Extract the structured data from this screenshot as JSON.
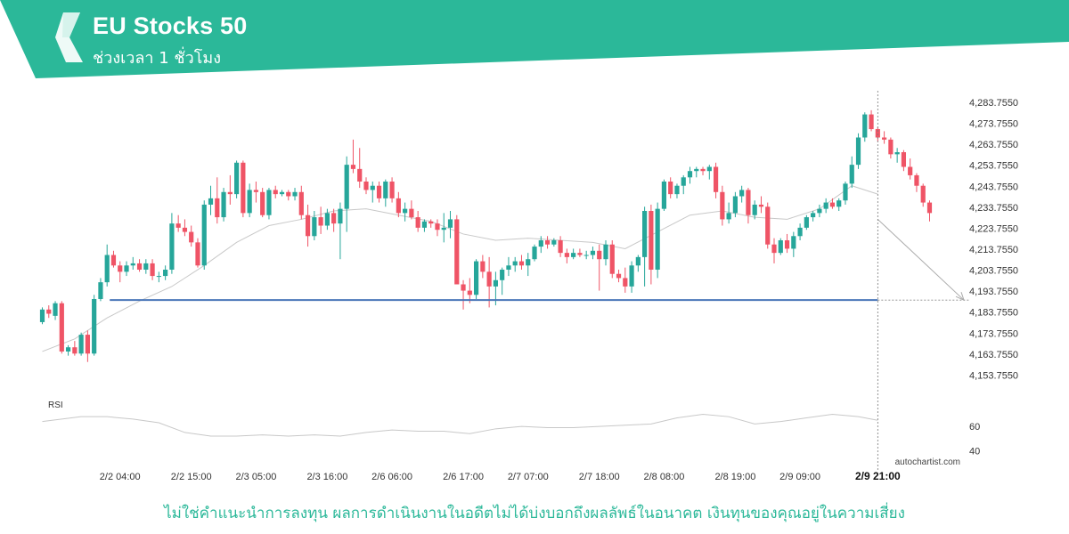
{
  "header": {
    "title": "EU Stocks 50",
    "subtitle": "ช่วงเวลา 1 ชั่วโมง",
    "logo_icon": "autochartist-logo-icon",
    "banner_color": "#2bb899"
  },
  "footer": {
    "disclaimer": "ไม่ใช่คำแนะนำการลงทุน ผลการดำเนินงานในอดีตไม่ได้บ่งบอกถึงผลลัพธ์ในอนาคต เงินทุนของคุณอยู่ในความเสี่ยง",
    "watermark": "autochartist.com"
  },
  "colors": {
    "up": "#26a69a",
    "down": "#ef5466",
    "ma": "#c8c8c8",
    "level": "#4a76b8",
    "rsi": "#c8c8c8",
    "projection": "#aaaaaa"
  },
  "chart_data": {
    "type": "candlestick",
    "symbol": "EU Stocks 50",
    "timeframe": "1 hour",
    "ylim": [
      4148,
      4288
    ],
    "y_ticks": [
      4283.755,
      4273.755,
      4263.755,
      4253.755,
      4243.755,
      4233.755,
      4223.755,
      4213.755,
      4203.755,
      4193.755,
      4183.755,
      4173.755,
      4163.755,
      4153.755
    ],
    "y_tick_labels": [
      "4,283.7550",
      "4,273.7550",
      "4,263.7550",
      "4,253.7550",
      "4,243.7550",
      "4,233.7550",
      "4,223.7550",
      "4,213.7550",
      "4,203.7550",
      "4,193.7550",
      "4,183.7550",
      "4,173.7550",
      "4,163.7550",
      "4,153.7550"
    ],
    "x_tick_labels": [
      "2/2 04:00",
      "2/2 15:00",
      "2/3 05:00",
      "2/3 16:00",
      "2/6 06:00",
      "2/6 17:00",
      "2/7 07:00",
      "2/7 18:00",
      "2/8 08:00",
      "2/8 19:00",
      "2/9 09:00"
    ],
    "x_tick_index": [
      12,
      23,
      33,
      44,
      54,
      65,
      75,
      86,
      96,
      107,
      117
    ],
    "current_time_label": "2/9 21:00",
    "current_time_index": 129,
    "support_level": 4189.5,
    "support_level_range": [
      10,
      129
    ],
    "projection": {
      "from_index": 129,
      "from_value": 4228,
      "to_index": 143,
      "to_value": 4189.5
    },
    "candles_ohlc": [
      [
        4179,
        4186,
        4178,
        4185
      ],
      [
        4185,
        4187,
        4181,
        4183
      ],
      [
        4182,
        4189,
        4180,
        4188
      ],
      [
        4188,
        4189,
        4164,
        4165
      ],
      [
        4165,
        4168,
        4163,
        4167
      ],
      [
        4167,
        4170,
        4163,
        4164
      ],
      [
        4164,
        4174,
        4163,
        4173
      ],
      [
        4173,
        4175,
        4160,
        4164
      ],
      [
        4164,
        4192,
        4163,
        4190
      ],
      [
        4190,
        4200,
        4189,
        4198
      ],
      [
        4198,
        4216,
        4196,
        4211
      ],
      [
        4211,
        4213,
        4205,
        4206
      ],
      [
        4206,
        4208,
        4198,
        4203
      ],
      [
        4203,
        4208,
        4201,
        4206
      ],
      [
        4206,
        4210,
        4204,
        4207
      ],
      [
        4207,
        4209,
        4203,
        4204
      ],
      [
        4204,
        4209,
        4202,
        4207
      ],
      [
        4207,
        4209,
        4199,
        4201
      ],
      [
        4201,
        4203,
        4198,
        4201
      ],
      [
        4201,
        4206,
        4199,
        4204
      ],
      [
        4204,
        4231,
        4202,
        4226
      ],
      [
        4226,
        4230,
        4222,
        4224
      ],
      [
        4224,
        4228,
        4220,
        4222
      ],
      [
        4222,
        4225,
        4215,
        4217
      ],
      [
        4217,
        4219,
        4205,
        4206
      ],
      [
        4206,
        4237,
        4204,
        4235
      ],
      [
        4235,
        4244,
        4230,
        4238
      ],
      [
        4238,
        4248,
        4226,
        4229
      ],
      [
        4229,
        4243,
        4227,
        4241
      ],
      [
        4241,
        4249,
        4235,
        4240
      ],
      [
        4240,
        4256,
        4238,
        4255
      ],
      [
        4255,
        4256,
        4229,
        4231
      ],
      [
        4231,
        4245,
        4229,
        4242
      ],
      [
        4242,
        4246,
        4236,
        4241
      ],
      [
        4241,
        4243,
        4229,
        4230
      ],
      [
        4230,
        4243,
        4228,
        4242
      ],
      [
        4242,
        4244,
        4238,
        4240
      ],
      [
        4240,
        4242,
        4239,
        4241
      ],
      [
        4241,
        4242,
        4237,
        4239
      ],
      [
        4239,
        4243,
        4237,
        4241
      ],
      [
        4241,
        4244,
        4228,
        4230
      ],
      [
        4230,
        4235,
        4215,
        4220
      ],
      [
        4220,
        4232,
        4218,
        4229
      ],
      [
        4229,
        4234,
        4221,
        4225
      ],
      [
        4225,
        4233,
        4223,
        4231
      ],
      [
        4231,
        4233,
        4222,
        4226
      ],
      [
        4226,
        4236,
        4209,
        4233
      ],
      [
        4233,
        4258,
        4222,
        4254
      ],
      [
        4254,
        4266,
        4250,
        4252
      ],
      [
        4252,
        4262,
        4243,
        4246
      ],
      [
        4246,
        4248,
        4240,
        4242
      ],
      [
        4242,
        4246,
        4236,
        4244
      ],
      [
        4244,
        4246,
        4236,
        4238
      ],
      [
        4238,
        4247,
        4234,
        4246
      ],
      [
        4246,
        4248,
        4236,
        4238
      ],
      [
        4238,
        4241,
        4229,
        4231
      ],
      [
        4231,
        4236,
        4227,
        4233
      ],
      [
        4233,
        4237,
        4228,
        4229
      ],
      [
        4229,
        4232,
        4222,
        4224
      ],
      [
        4224,
        4228,
        4222,
        4227
      ],
      [
        4227,
        4228,
        4224,
        4226
      ],
      [
        4226,
        4228,
        4220,
        4223
      ],
      [
        4223,
        4231,
        4217,
        4224
      ],
      [
        4224,
        4232,
        4219,
        4228
      ],
      [
        4228,
        4230,
        4197,
        4197
      ],
      [
        4197,
        4199,
        4185,
        4194
      ],
      [
        4194,
        4200,
        4188,
        4192
      ],
      [
        4192,
        4209,
        4190,
        4208
      ],
      [
        4208,
        4211,
        4200,
        4203
      ],
      [
        4203,
        4210,
        4186,
        4196
      ],
      [
        4196,
        4203,
        4187,
        4199
      ],
      [
        4199,
        4205,
        4192,
        4204
      ],
      [
        4204,
        4210,
        4201,
        4206
      ],
      [
        4206,
        4210,
        4203,
        4208
      ],
      [
        4208,
        4211,
        4204,
        4206
      ],
      [
        4206,
        4212,
        4201,
        4209
      ],
      [
        4209,
        4216,
        4208,
        4215
      ],
      [
        4215,
        4220,
        4212,
        4218
      ],
      [
        4218,
        4220,
        4214,
        4216
      ],
      [
        4216,
        4219,
        4215,
        4218
      ],
      [
        4218,
        4220,
        4210,
        4212
      ],
      [
        4212,
        4214,
        4207,
        4210
      ],
      [
        4210,
        4214,
        4209,
        4212
      ],
      [
        4212,
        4214,
        4210,
        4211
      ],
      [
        4211,
        4213,
        4209,
        4211
      ],
      [
        4211,
        4215,
        4209,
        4213
      ],
      [
        4213,
        4216,
        4194,
        4209
      ],
      [
        4209,
        4218,
        4206,
        4216
      ],
      [
        4216,
        4218,
        4200,
        4202
      ],
      [
        4202,
        4204,
        4198,
        4200
      ],
      [
        4200,
        4205,
        4193,
        4196
      ],
      [
        4196,
        4208,
        4193,
        4206
      ],
      [
        4206,
        4211,
        4203,
        4210
      ],
      [
        4210,
        4234,
        4196,
        4232
      ],
      [
        4232,
        4235,
        4197,
        4204
      ],
      [
        4204,
        4236,
        4200,
        4233
      ],
      [
        4233,
        4247,
        4232,
        4246
      ],
      [
        4246,
        4248,
        4238,
        4240
      ],
      [
        4240,
        4245,
        4238,
        4244
      ],
      [
        4244,
        4249,
        4240,
        4248
      ],
      [
        4248,
        4253,
        4245,
        4251
      ],
      [
        4251,
        4253,
        4248,
        4252
      ],
      [
        4252,
        4253,
        4249,
        4251
      ],
      [
        4251,
        4254,
        4247,
        4253
      ],
      [
        4253,
        4255,
        4238,
        4241
      ],
      [
        4241,
        4244,
        4225,
        4228
      ],
      [
        4228,
        4236,
        4226,
        4231
      ],
      [
        4231,
        4241,
        4229,
        4239
      ],
      [
        4239,
        4244,
        4236,
        4242
      ],
      [
        4242,
        4243,
        4226,
        4230
      ],
      [
        4230,
        4237,
        4228,
        4235
      ],
      [
        4235,
        4239,
        4231,
        4234
      ],
      [
        4234,
        4236,
        4214,
        4216
      ],
      [
        4216,
        4219,
        4207,
        4212
      ],
      [
        4212,
        4219,
        4211,
        4218
      ],
      [
        4218,
        4221,
        4212,
        4214
      ],
      [
        4214,
        4222,
        4210,
        4220
      ],
      [
        4220,
        4226,
        4218,
        4224
      ],
      [
        4224,
        4230,
        4223,
        4229
      ],
      [
        4229,
        4232,
        4227,
        4231
      ],
      [
        4231,
        4235,
        4229,
        4233
      ],
      [
        4233,
        4238,
        4231,
        4236
      ],
      [
        4236,
        4238,
        4233,
        4234
      ],
      [
        4234,
        4238,
        4232,
        4237
      ],
      [
        4237,
        4246,
        4235,
        4245
      ],
      [
        4245,
        4258,
        4243,
        4254
      ],
      [
        4254,
        4269,
        4252,
        4267
      ],
      [
        4267,
        4279,
        4265,
        4278
      ],
      [
        4278,
        4280,
        4270,
        4271
      ],
      [
        4271,
        4272,
        4265,
        4267
      ],
      [
        4267,
        4270,
        4264,
        4266
      ],
      [
        4266,
        4267,
        4257,
        4259
      ],
      [
        4259,
        4262,
        4255,
        4260
      ],
      [
        4260,
        4261,
        4251,
        4253
      ],
      [
        4253,
        4257,
        4247,
        4249
      ],
      [
        4249,
        4250,
        4241,
        4244
      ],
      [
        4244,
        4245,
        4234,
        4236
      ],
      [
        4236,
        4237,
        4227,
        4231
      ]
    ],
    "moving_average": [
      [
        0,
        4165
      ],
      [
        5,
        4171
      ],
      [
        10,
        4181
      ],
      [
        15,
        4189
      ],
      [
        20,
        4196
      ],
      [
        25,
        4206
      ],
      [
        30,
        4217
      ],
      [
        35,
        4225
      ],
      [
        40,
        4228
      ],
      [
        45,
        4232
      ],
      [
        50,
        4233
      ],
      [
        55,
        4230
      ],
      [
        60,
        4227
      ],
      [
        65,
        4221
      ],
      [
        70,
        4218
      ],
      [
        75,
        4219
      ],
      [
        80,
        4218
      ],
      [
        85,
        4217
      ],
      [
        90,
        4214
      ],
      [
        95,
        4222
      ],
      [
        100,
        4230
      ],
      [
        105,
        4232
      ],
      [
        110,
        4229
      ],
      [
        115,
        4228
      ],
      [
        120,
        4233
      ],
      [
        125,
        4244
      ],
      [
        129,
        4240
      ]
    ],
    "rsi": {
      "label": "RSI",
      "ticks": [
        60,
        40
      ],
      "ylim": [
        30,
        85
      ],
      "values": [
        [
          0,
          64
        ],
        [
          3,
          66
        ],
        [
          6,
          68
        ],
        [
          10,
          68
        ],
        [
          14,
          66
        ],
        [
          18,
          63
        ],
        [
          22,
          55
        ],
        [
          26,
          52
        ],
        [
          30,
          52
        ],
        [
          34,
          53
        ],
        [
          38,
          52
        ],
        [
          42,
          53
        ],
        [
          46,
          52
        ],
        [
          50,
          55
        ],
        [
          54,
          57
        ],
        [
          58,
          56
        ],
        [
          62,
          56
        ],
        [
          66,
          54
        ],
        [
          70,
          58
        ],
        [
          74,
          60
        ],
        [
          78,
          59
        ],
        [
          82,
          59
        ],
        [
          86,
          60
        ],
        [
          90,
          61
        ],
        [
          94,
          62
        ],
        [
          98,
          67
        ],
        [
          102,
          70
        ],
        [
          106,
          68
        ],
        [
          110,
          62
        ],
        [
          114,
          64
        ],
        [
          118,
          67
        ],
        [
          122,
          70
        ],
        [
          126,
          68
        ],
        [
          129,
          65
        ]
      ]
    }
  }
}
